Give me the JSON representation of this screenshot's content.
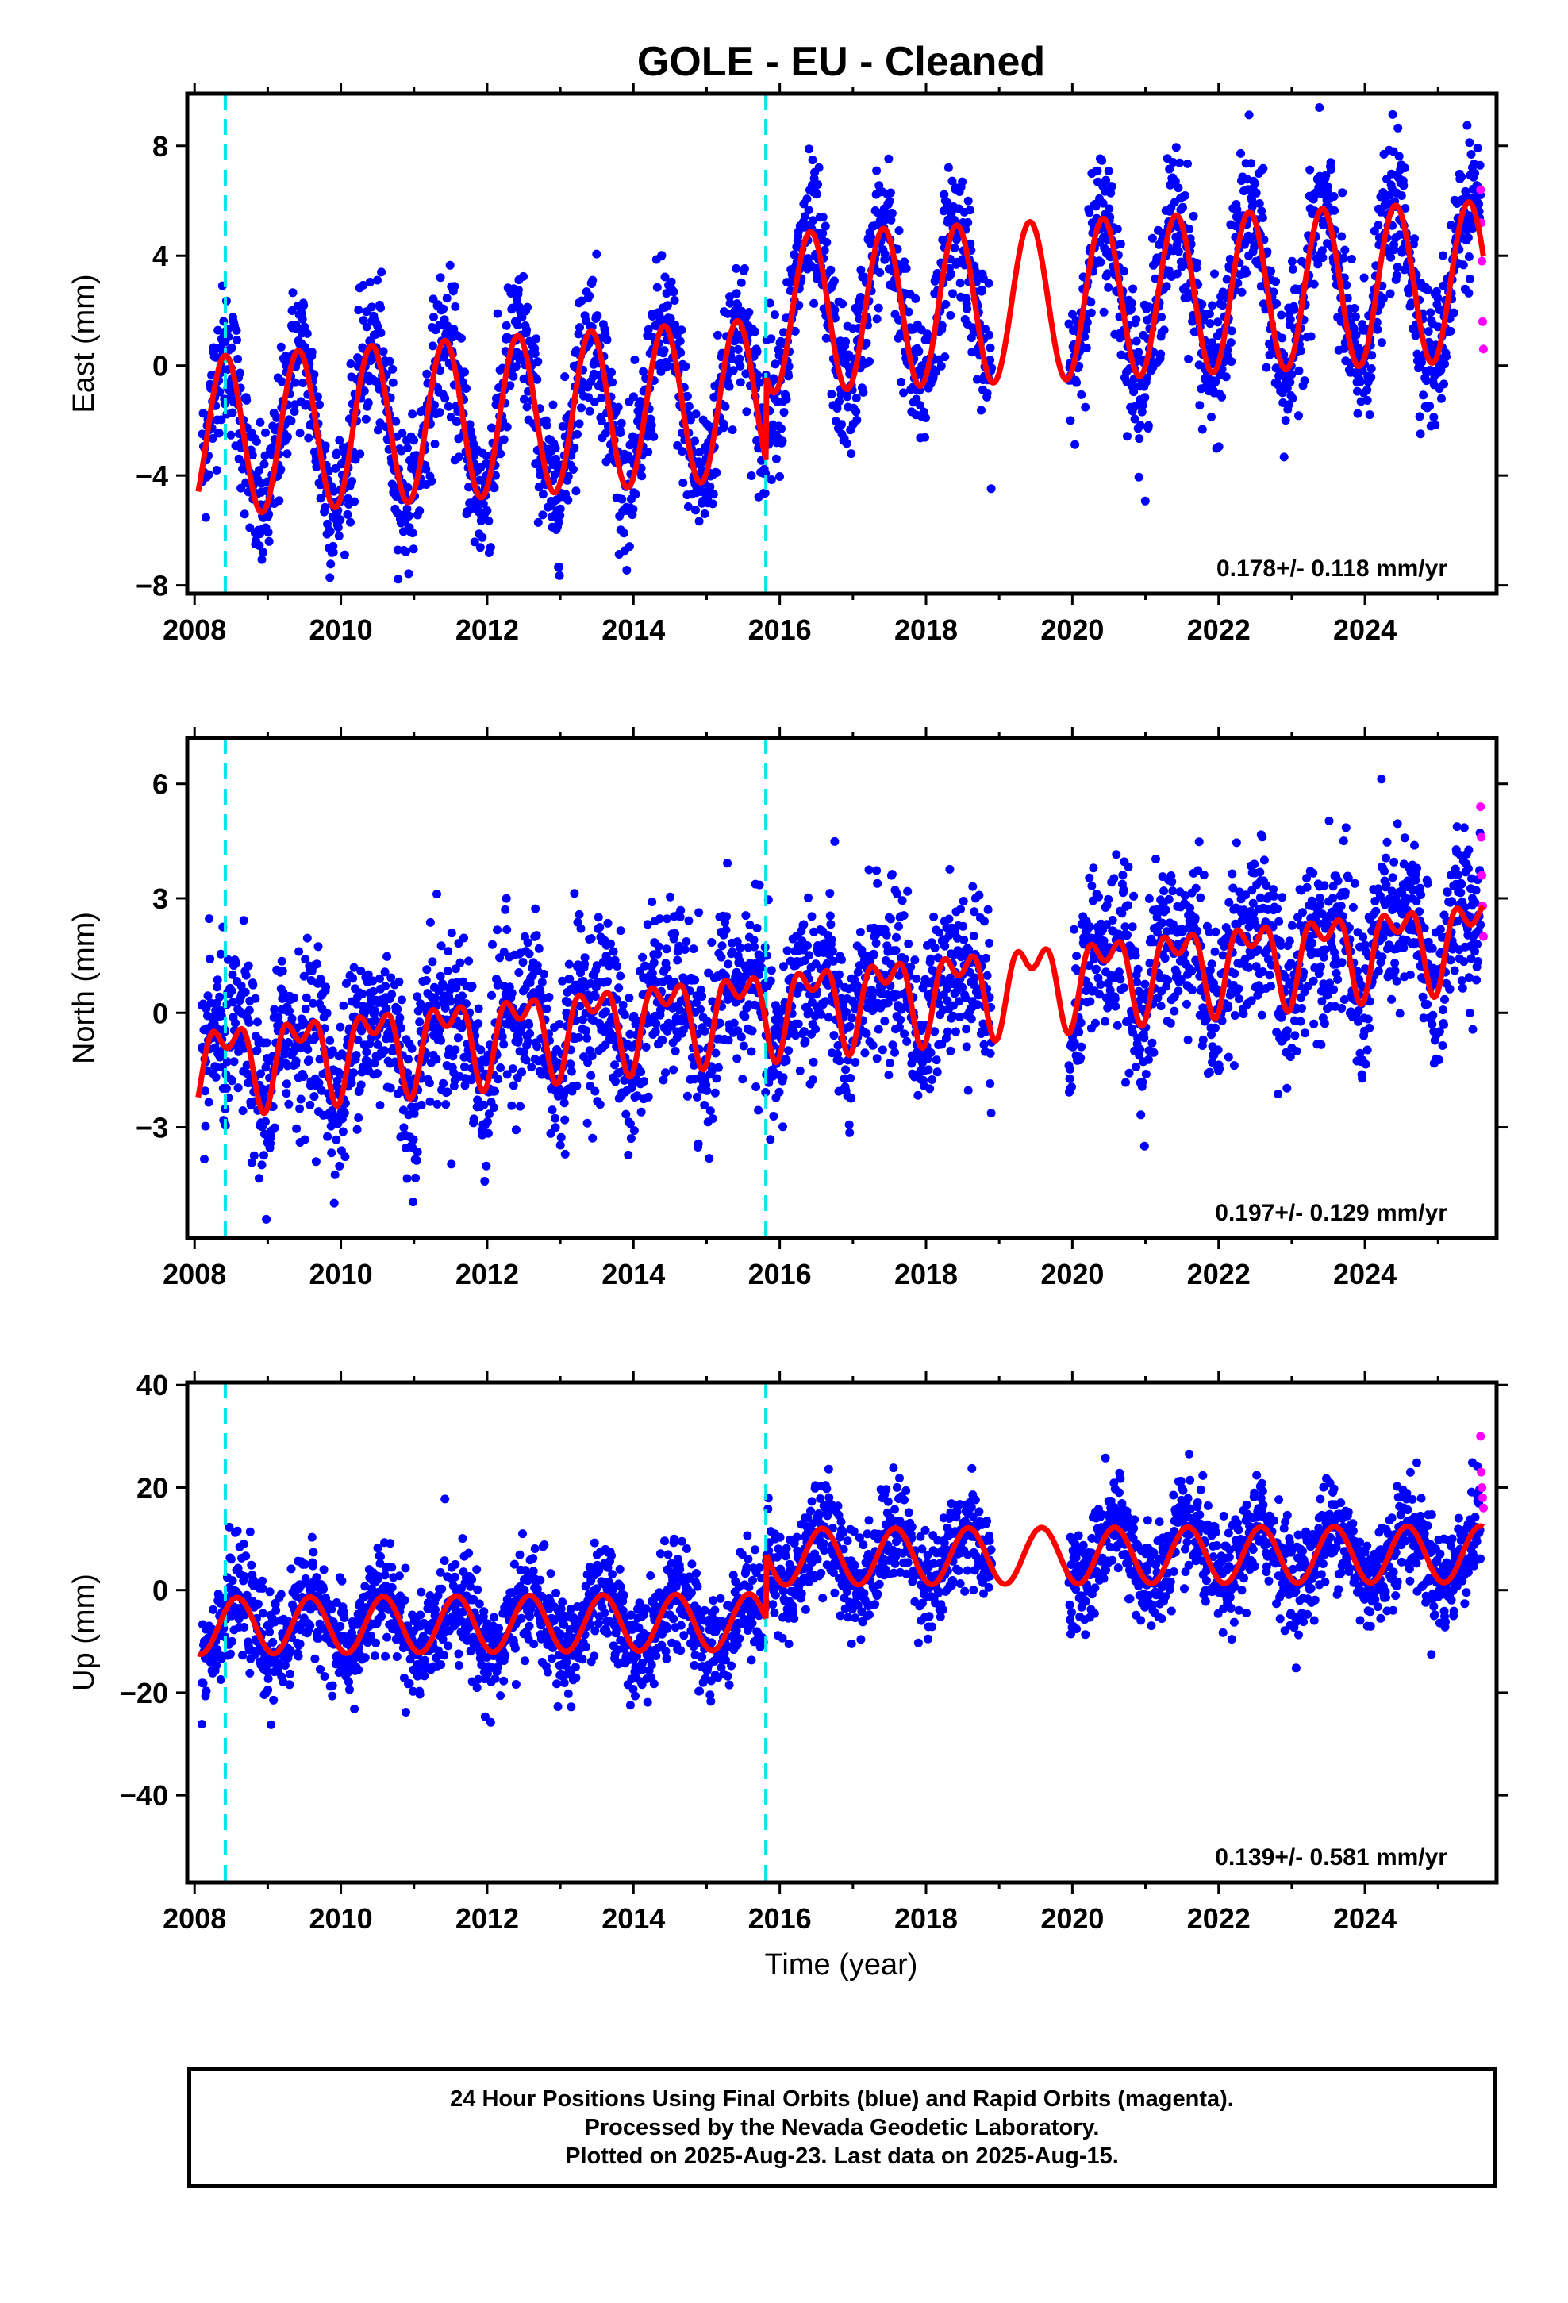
{
  "title": "GOLE  - EU - Cleaned",
  "xlabel": "Time (year)",
  "caption": [
    "24 Hour Positions Using Final Orbits (blue) and Rapid Orbits (magenta).",
    "Processed by the Nevada Geodetic Laboratory.",
    "Plotted on 2025-Aug-23. Last data on 2025-Aug-15."
  ],
  "colors": {
    "final": "#0000ff",
    "rapid": "#ff00ff",
    "model": "#ff0000",
    "steps": "#00e5ee",
    "axes": "#000000"
  },
  "chart_data": [
    {
      "type": "scatter",
      "ylabel": "East (mm)",
      "rate": "0.178+/- 0.118 mm/yr",
      "xlim": [
        2007.9,
        2025.8
      ],
      "ylim": [
        -8.3,
        9.9
      ],
      "xticks": [
        2008,
        2010,
        2012,
        2014,
        2016,
        2018,
        2020,
        2022,
        2024
      ],
      "yticks": [
        -8,
        -4,
        0,
        4,
        8
      ],
      "ytick_labels": [
        "−8",
        "−4",
        "0",
        "4",
        "8"
      ],
      "steps": [
        2008.42,
        2015.81
      ],
      "gaps": [
        [
          2018.9,
          2019.95
        ]
      ],
      "model_segments": [
        {
          "t0": 2008.05,
          "t1": 2015.81,
          "ref": 2008.05,
          "offset": -2.6,
          "trend": 0.18,
          "amp": 2.9,
          "peak": 0.42
        },
        {
          "t0": 2015.81,
          "t1": 2025.62,
          "ref": 2015.81,
          "offset": 1.9,
          "trend": 0.12,
          "amp": 2.9,
          "peak": 0.42
        }
      ],
      "scatter_sd": 1.3,
      "rapid": {
        "x": [
          2025.58,
          2025.59,
          2025.6,
          2025.61,
          2025.62
        ],
        "y": [
          6.4,
          5.2,
          3.8,
          1.6,
          0.6
        ]
      }
    },
    {
      "type": "scatter",
      "ylabel": "North (mm)",
      "rate": "0.197+/- 0.129 mm/yr",
      "xlim": [
        2007.9,
        2025.8
      ],
      "ylim": [
        -5.9,
        7.2
      ],
      "xticks": [
        2008,
        2010,
        2012,
        2014,
        2016,
        2018,
        2020,
        2022,
        2024
      ],
      "yticks": [
        -3,
        0,
        3,
        6
      ],
      "ytick_labels": [
        "−3",
        "0",
        "3",
        "6"
      ],
      "steps": [
        2008.42,
        2015.81
      ],
      "gaps": [
        [
          2018.9,
          2019.95
        ]
      ],
      "model_segments": [
        {
          "t0": 2008.05,
          "t1": 2025.62,
          "ref": 2008.05,
          "offset": -1.3,
          "trend": 0.19,
          "amp": 0.9,
          "peak": 0.45,
          "semi": true
        }
      ],
      "scatter_sd": 1.1,
      "rapid": {
        "x": [
          2025.58,
          2025.59,
          2025.6,
          2025.61,
          2025.62
        ],
        "y": [
          5.4,
          4.6,
          3.6,
          2.8,
          2.0
        ]
      }
    },
    {
      "type": "scatter",
      "ylabel": "Up (mm)",
      "rate": "0.139+/- 0.581 mm/yr",
      "xlim": [
        2007.9,
        2025.8
      ],
      "ylim": [
        -57,
        40.5
      ],
      "xticks": [
        2008,
        2010,
        2012,
        2014,
        2016,
        2018,
        2020,
        2022,
        2024
      ],
      "yticks": [
        -40,
        -20,
        0,
        20,
        40
      ],
      "ytick_labels": [
        "−40",
        "−20",
        "0",
        "20",
        "40"
      ],
      "steps": [
        2008.42,
        2015.81
      ],
      "gaps": [
        [
          2018.9,
          2019.95
        ]
      ],
      "model_segments": [
        {
          "t0": 2008.05,
          "t1": 2015.81,
          "ref": 2008.05,
          "offset": -7.0,
          "trend": 0.1,
          "amp": 5.5,
          "peak": 0.58
        },
        {
          "t0": 2015.81,
          "t1": 2025.62,
          "ref": 2015.81,
          "offset": 6.5,
          "trend": 0.05,
          "amp": 5.5,
          "peak": 0.58
        }
      ],
      "scatter_sd": 5.0,
      "rapid": {
        "x": [
          2025.58,
          2025.59,
          2025.6,
          2025.61,
          2025.62
        ],
        "y": [
          30,
          23,
          20,
          18,
          16
        ]
      }
    }
  ]
}
